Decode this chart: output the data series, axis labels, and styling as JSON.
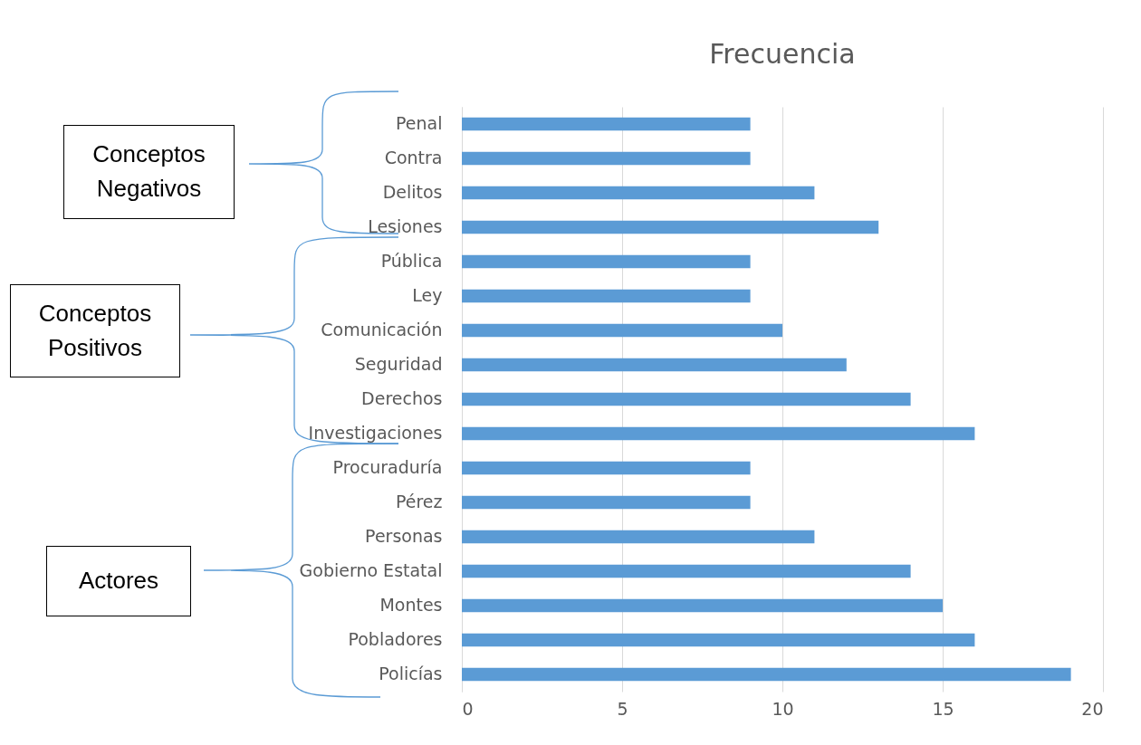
{
  "chart_data": {
    "type": "bar",
    "orientation": "horizontal",
    "title": "Frecuencia",
    "categories": [
      "Penal",
      "Contra",
      "Delitos",
      "Lesiones",
      "Pública",
      "Ley",
      "Comunicación",
      "Seguridad",
      "Derechos",
      "Investigaciones",
      "Procuraduría",
      "Pérez",
      "Personas",
      "Gobierno Estatal",
      "Montes",
      "Pobladores",
      "Policías"
    ],
    "values": [
      9,
      9,
      11,
      13,
      9,
      9,
      10,
      12,
      14,
      16,
      9,
      9,
      11,
      14,
      15,
      16,
      19
    ],
    "color": "#5b9bd5",
    "xlim": [
      0,
      20
    ],
    "xticks": [
      0,
      5,
      10,
      15,
      20
    ],
    "grid": "x",
    "annotations": [
      "Conceptos Negativos",
      "Conceptos Positivos",
      "Actores"
    ]
  }
}
